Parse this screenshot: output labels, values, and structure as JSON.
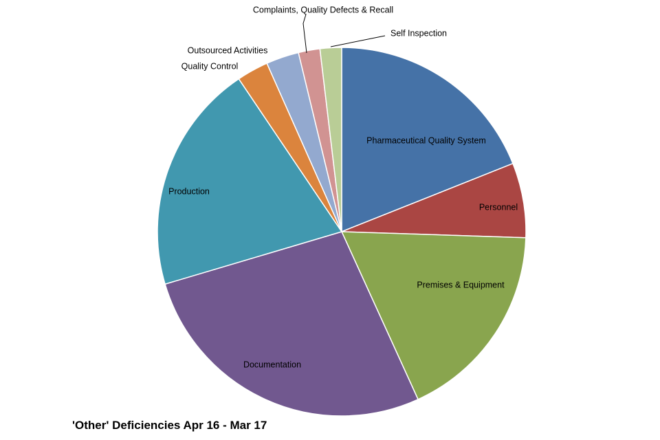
{
  "chart_data": {
    "type": "pie",
    "title": "'Other' Deficiencies Apr 16 - Mar 17",
    "start_angle_deg": 0,
    "direction": "clockwise",
    "legend": "none",
    "slices": [
      {
        "label": "Pharmaceutical Quality System",
        "value": 19.1,
        "color": "#4572A7"
      },
      {
        "label": "Personnel",
        "value": 6.6,
        "color": "#AA4643"
      },
      {
        "label": "Premises & Equipment",
        "value": 17.8,
        "color": "#89A54E"
      },
      {
        "label": "Documentation",
        "value": 27.4,
        "color": "#71588F"
      },
      {
        "label": "Production",
        "value": 20.3,
        "color": "#4198AF"
      },
      {
        "label": "Quality Control",
        "value": 2.8,
        "color": "#DB843D"
      },
      {
        "label": "Outsourced Activities",
        "value": 2.9,
        "color": "#93A9CF"
      },
      {
        "label": "Complaints, Quality Defects & Recall",
        "value": 1.9,
        "color": "#D19392"
      },
      {
        "label": "Self Inspection",
        "value": 1.9,
        "color": "#B9CD96"
      }
    ]
  }
}
